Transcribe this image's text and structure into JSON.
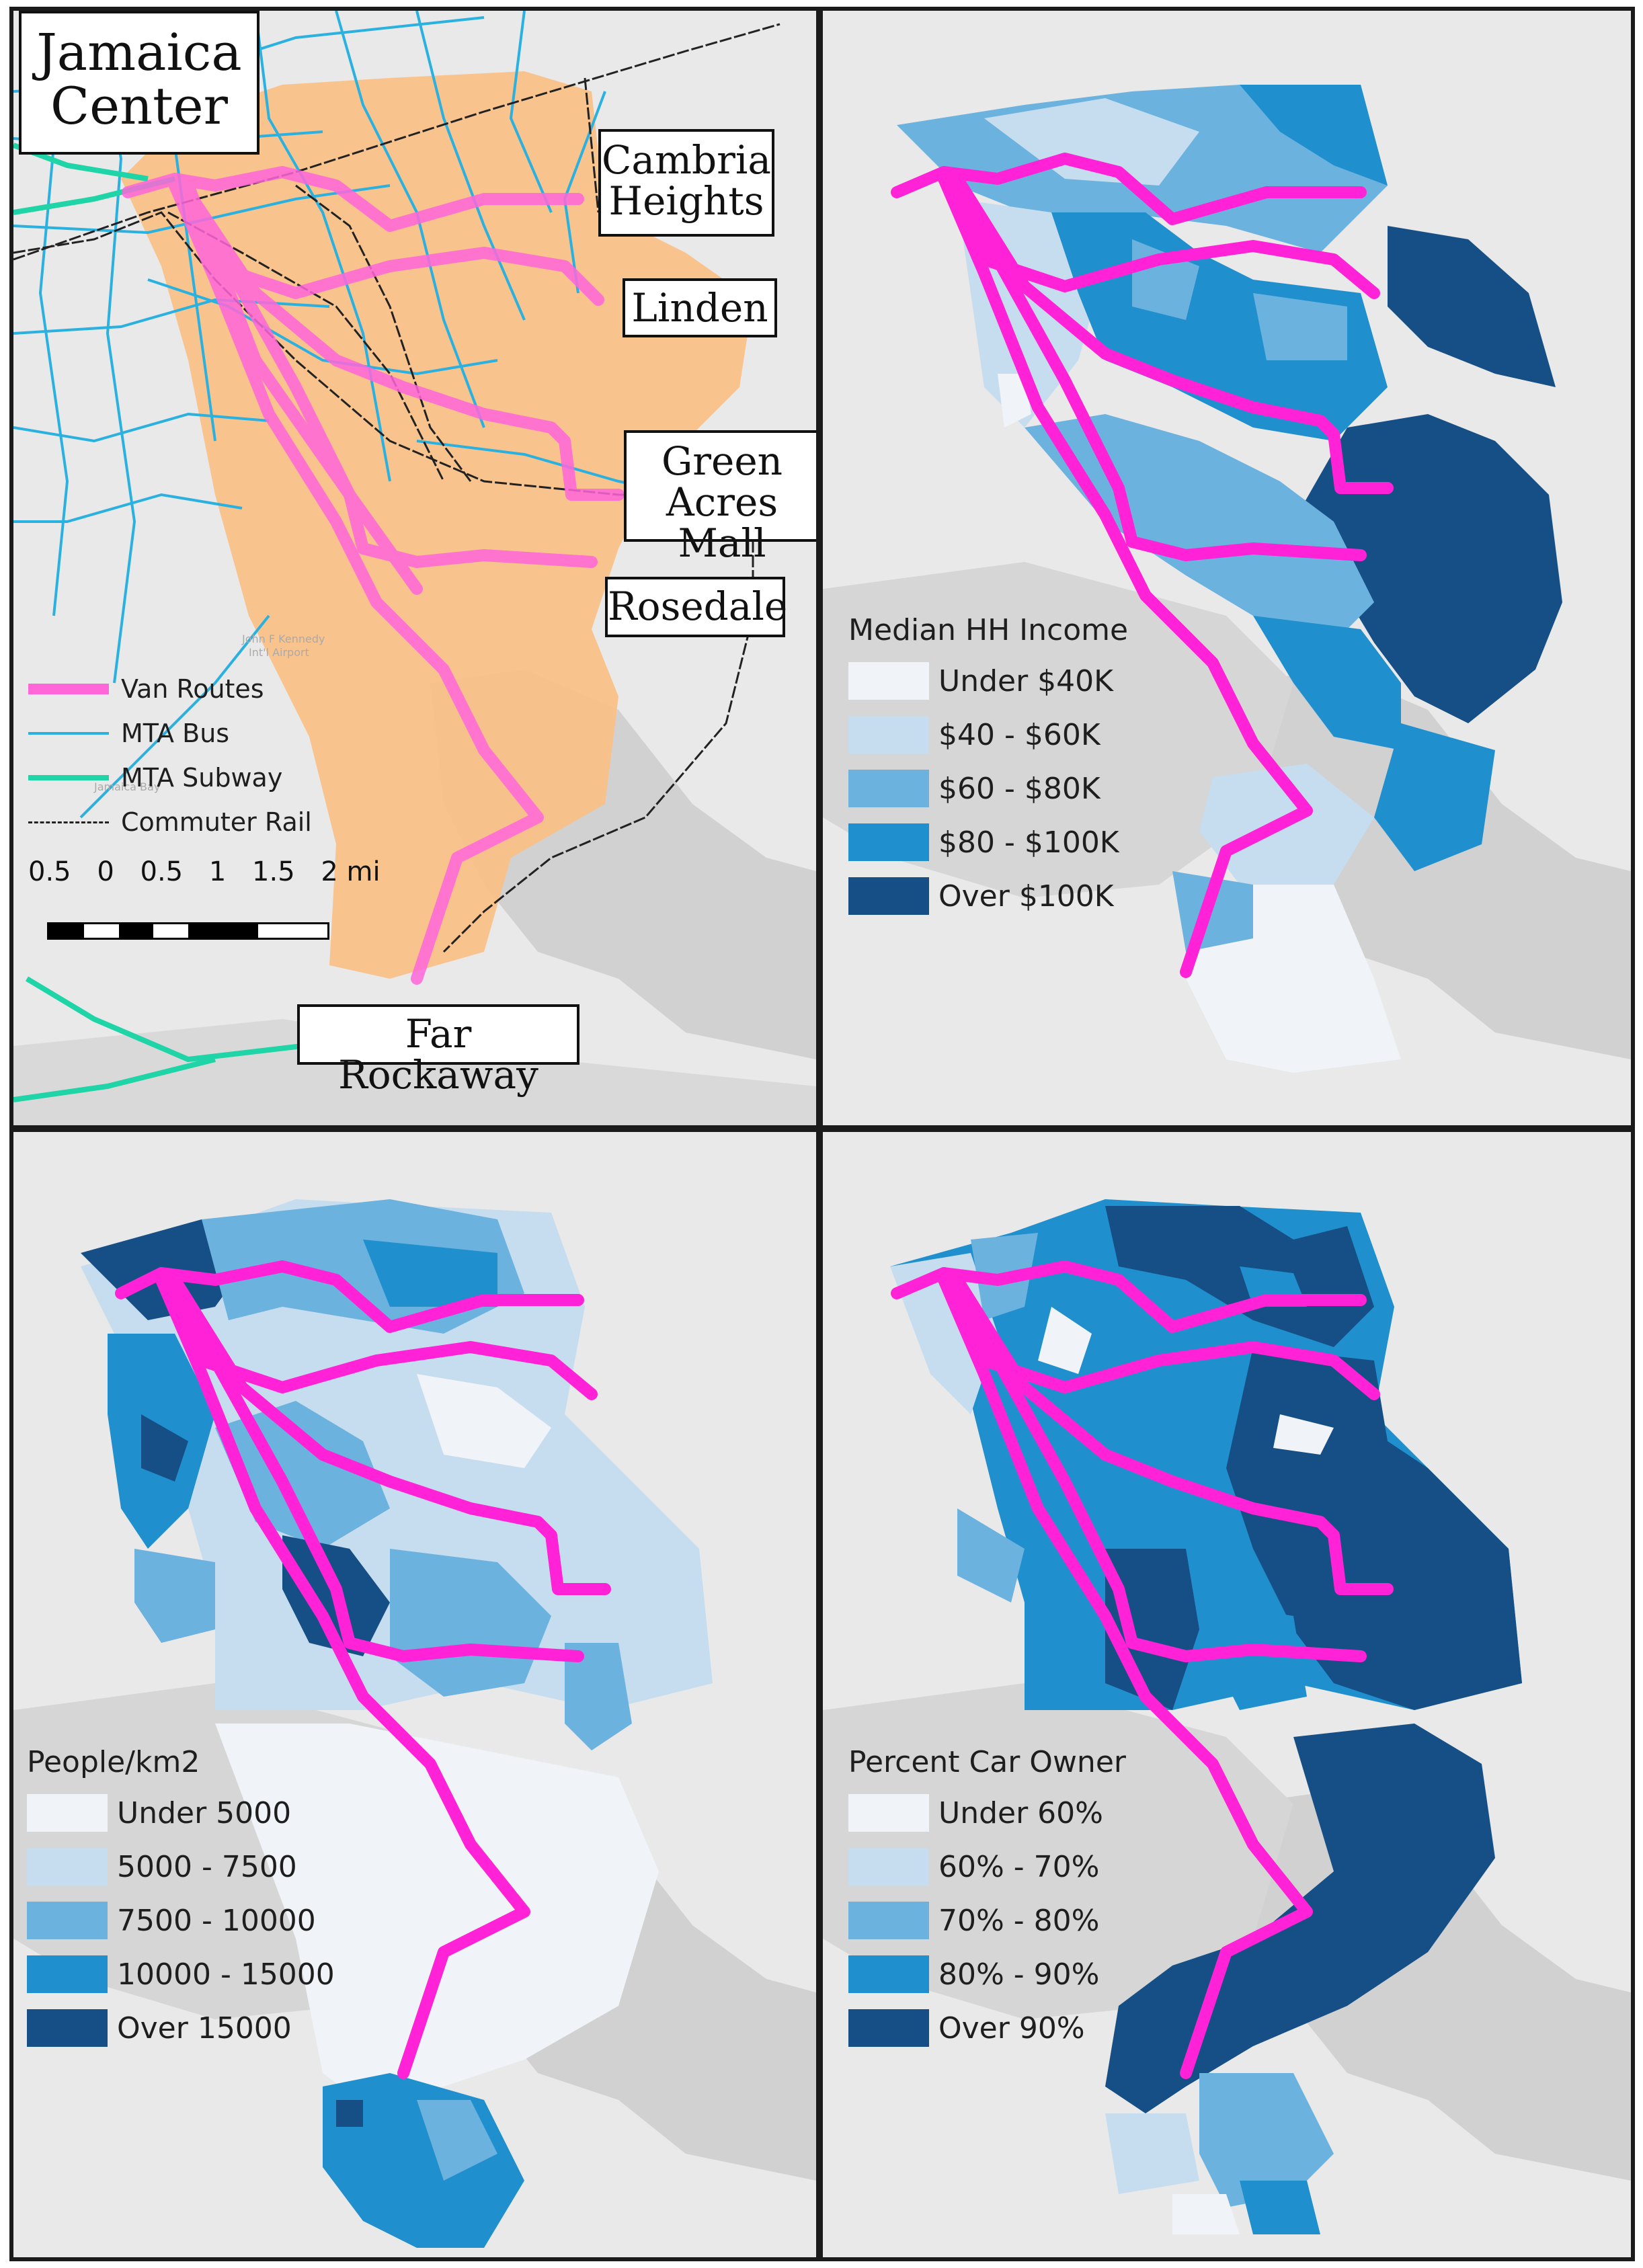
{
  "map_overview": {
    "title_lines": [
      "Jamaica",
      "Center"
    ],
    "places": {
      "cambria": [
        "Cambria",
        "Heights"
      ],
      "linden": [
        "Linden"
      ],
      "green_acres": [
        "Green",
        "Acres Mall"
      ],
      "rosedale": [
        "Rosedale"
      ],
      "far_rockaway": [
        "Far Rockaway"
      ]
    },
    "legend": [
      {
        "label": "Van Routes",
        "color": "#ff66d9"
      },
      {
        "label": "MTA Bus",
        "color": "#2bb1e0"
      },
      {
        "label": "MTA Subway",
        "color": "#1fd4a6"
      },
      {
        "label": "Commuter Rail",
        "color": "#222222"
      }
    ],
    "scale_labels": [
      "0.5",
      "0",
      "0.5",
      "1",
      "1.5",
      "2 mi"
    ],
    "basemap_labels": [
      "John F Kennedy",
      "Int'l Airport",
      "Jamaica Bay"
    ]
  },
  "map_income": {
    "legend_title": "Median HH Income",
    "classes": [
      {
        "label": "Under $40K",
        "color": "#f0f3f7"
      },
      {
        "label": "$40 - $60K",
        "color": "#c6dcef"
      },
      {
        "label": "$60 - $80K",
        "color": "#6bb2df"
      },
      {
        "label": "$80 - $100K",
        "color": "#1f8fce"
      },
      {
        "label": "Over $100K",
        "color": "#164f86"
      }
    ]
  },
  "map_density": {
    "legend_title": "People/km2",
    "classes": [
      {
        "label": "Under 5000",
        "color": "#f0f3f7"
      },
      {
        "label": "5000 - 7500",
        "color": "#c6dcef"
      },
      {
        "label": "7500 - 10000",
        "color": "#6bb2df"
      },
      {
        "label": "10000 - 15000",
        "color": "#1f8fce"
      },
      {
        "label": "Over 15000",
        "color": "#164f86"
      }
    ]
  },
  "map_cars": {
    "legend_title": "Percent Car Owner",
    "classes": [
      {
        "label": "Under 60%",
        "color": "#f0f3f7"
      },
      {
        "label": "60% - 70%",
        "color": "#c6dcef"
      },
      {
        "label": "70% - 80%",
        "color": "#6bb2df"
      },
      {
        "label": "80% - 90%",
        "color": "#1f8fce"
      },
      {
        "label": "Over 90%",
        "color": "#164f86"
      }
    ]
  },
  "colors": {
    "van_route": "#ff22d6",
    "service_area": "#fbbf84",
    "water": "#d3d3d3",
    "land": "#e9e9e9"
  }
}
